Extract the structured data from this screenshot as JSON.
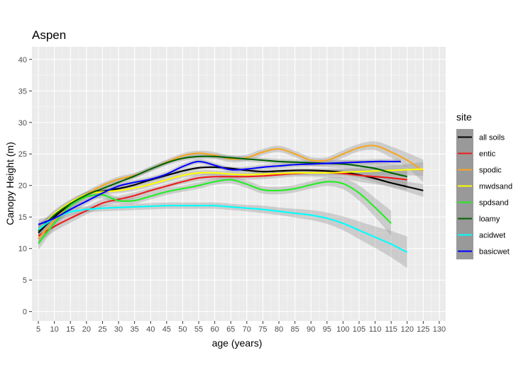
{
  "chart_data": {
    "type": "line",
    "title": "Aspen",
    "xlabel": "age (years)",
    "ylabel": "Canopy Height (m)",
    "xlim": [
      3,
      132
    ],
    "ylim": [
      -1.5,
      42
    ],
    "xticks": [
      5,
      10,
      15,
      20,
      25,
      30,
      35,
      40,
      45,
      50,
      55,
      60,
      65,
      70,
      75,
      80,
      85,
      90,
      95,
      100,
      105,
      110,
      115,
      120,
      125,
      130
    ],
    "yticks": [
      0,
      5,
      10,
      15,
      20,
      25,
      30,
      35,
      40
    ],
    "grid": true,
    "legend": {
      "title": "site",
      "position": "right"
    },
    "confidence_band": true,
    "series": [
      {
        "name": "all soils",
        "color": "#000000",
        "x": [
          5,
          10,
          15,
          20,
          25,
          30,
          35,
          40,
          45,
          50,
          55,
          60,
          65,
          70,
          75,
          80,
          85,
          90,
          95,
          100,
          105,
          110,
          115,
          120,
          125
        ],
        "y": [
          12.5,
          15.0,
          17.0,
          18.6,
          19.1,
          19.5,
          20.1,
          20.9,
          21.6,
          22.3,
          22.8,
          22.9,
          22.7,
          22.4,
          22.2,
          22.3,
          22.4,
          22.4,
          22.3,
          22.1,
          21.7,
          21.1,
          20.4,
          19.8,
          19.2
        ],
        "lo": [
          12.0,
          14.6,
          16.6,
          18.2,
          18.8,
          19.2,
          19.8,
          20.6,
          21.3,
          22.0,
          22.5,
          22.6,
          22.4,
          22.1,
          21.9,
          22.0,
          22.1,
          22.1,
          22.0,
          21.7,
          21.2,
          20.5,
          19.7,
          19.0,
          18.2
        ],
        "hi": [
          13.0,
          15.4,
          17.4,
          19.0,
          19.4,
          19.8,
          20.4,
          21.2,
          21.9,
          22.6,
          23.1,
          23.2,
          23.0,
          22.7,
          22.5,
          22.6,
          22.7,
          22.7,
          22.6,
          22.5,
          22.2,
          21.7,
          21.1,
          20.6,
          20.2
        ]
      },
      {
        "name": "entic",
        "color": "#ee1c1c",
        "x": [
          5,
          10,
          15,
          20,
          25,
          30,
          35,
          40,
          45,
          50,
          55,
          60,
          65,
          70,
          75,
          80,
          85,
          90,
          95,
          100,
          105,
          110,
          115,
          120
        ],
        "y": [
          12.0,
          13.5,
          14.8,
          16.0,
          17.2,
          17.8,
          18.4,
          19.2,
          19.9,
          20.6,
          21.2,
          21.4,
          21.4,
          21.4,
          21.5,
          21.7,
          21.9,
          22.0,
          22.0,
          21.9,
          21.6,
          21.4,
          21.2,
          20.9
        ],
        "lo": [
          11.0,
          12.7,
          14.1,
          15.4,
          16.6,
          17.3,
          17.9,
          18.8,
          19.5,
          20.2,
          20.7,
          20.9,
          20.9,
          20.9,
          21.0,
          21.2,
          21.4,
          21.4,
          21.3,
          21.1,
          20.6,
          20.2,
          19.8,
          19.2
        ],
        "hi": [
          13.0,
          14.3,
          15.5,
          16.6,
          17.8,
          18.3,
          18.9,
          19.6,
          20.3,
          21.0,
          21.7,
          21.9,
          21.9,
          21.9,
          22.0,
          22.2,
          22.4,
          22.6,
          22.7,
          22.7,
          22.6,
          22.6,
          22.6,
          22.6
        ]
      },
      {
        "name": "spodic",
        "color": "#f5a623",
        "x": [
          5,
          10,
          15,
          20,
          25,
          30,
          35,
          40,
          45,
          50,
          55,
          60,
          65,
          70,
          75,
          80,
          85,
          90,
          95,
          100,
          105,
          110,
          115,
          120,
          125
        ],
        "y": [
          11.5,
          14.5,
          16.8,
          18.6,
          20.0,
          21.0,
          21.6,
          22.6,
          23.7,
          24.7,
          25.1,
          24.8,
          24.2,
          24.4,
          25.3,
          25.8,
          25.0,
          24.0,
          24.0,
          25.0,
          26.0,
          26.3,
          25.3,
          24.0,
          22.3
        ],
        "lo": [
          10.5,
          13.7,
          16.2,
          18.1,
          19.6,
          20.6,
          21.2,
          22.2,
          23.3,
          24.3,
          24.7,
          24.3,
          23.7,
          23.9,
          24.8,
          25.3,
          24.5,
          23.5,
          23.5,
          24.4,
          25.4,
          25.6,
          24.4,
          22.8,
          20.5
        ],
        "hi": [
          12.5,
          15.3,
          17.4,
          19.1,
          20.4,
          21.4,
          22.0,
          23.0,
          24.1,
          25.1,
          25.5,
          25.3,
          24.7,
          24.9,
          25.8,
          26.3,
          25.5,
          24.5,
          24.5,
          25.6,
          26.6,
          27.0,
          26.2,
          25.2,
          24.1
        ]
      },
      {
        "name": "mwdsand",
        "color": "#ffff00",
        "x": [
          5,
          10,
          15,
          20,
          25,
          30,
          35,
          40,
          45,
          50,
          55,
          60,
          65,
          70,
          75,
          80,
          85,
          90,
          95,
          100,
          105,
          110,
          115,
          120,
          125
        ],
        "y": [
          12.8,
          15.5,
          17.3,
          18.6,
          19.0,
          19.2,
          19.6,
          20.2,
          20.9,
          21.6,
          22.0,
          22.0,
          21.8,
          21.7,
          21.8,
          21.9,
          22.0,
          22.0,
          22.0,
          22.1,
          22.2,
          22.3,
          22.4,
          22.5,
          22.6
        ],
        "lo": [
          12.0,
          14.9,
          16.8,
          18.2,
          18.6,
          18.8,
          19.2,
          19.8,
          20.5,
          21.2,
          21.6,
          21.6,
          21.4,
          21.3,
          21.4,
          21.5,
          21.6,
          21.6,
          21.6,
          21.6,
          21.6,
          21.6,
          21.6,
          21.6,
          21.5
        ],
        "hi": [
          13.6,
          16.1,
          17.8,
          19.0,
          19.4,
          19.6,
          20.0,
          20.6,
          21.3,
          22.0,
          22.4,
          22.4,
          22.2,
          22.1,
          22.2,
          22.3,
          22.4,
          22.4,
          22.4,
          22.6,
          22.8,
          23.0,
          23.2,
          23.4,
          23.7
        ]
      },
      {
        "name": "spdsand",
        "color": "#22ee22",
        "x": [
          5,
          10,
          15,
          20,
          25,
          30,
          35,
          40,
          45,
          50,
          55,
          60,
          65,
          70,
          75,
          80,
          85,
          90,
          95,
          100,
          105,
          110,
          115
        ],
        "y": [
          10.8,
          14.0,
          16.8,
          18.2,
          18.5,
          17.6,
          17.6,
          18.3,
          19.0,
          19.5,
          20.0,
          20.6,
          20.9,
          20.2,
          19.3,
          19.2,
          19.5,
          20.1,
          20.6,
          20.3,
          18.8,
          16.5,
          14.0
        ],
        "lo": [
          9.8,
          13.2,
          16.0,
          17.6,
          17.9,
          17.1,
          17.1,
          17.8,
          18.5,
          19.0,
          19.5,
          20.1,
          20.3,
          19.6,
          18.7,
          18.6,
          18.9,
          19.5,
          19.9,
          19.4,
          17.6,
          15.0,
          12.0
        ],
        "hi": [
          11.8,
          14.8,
          17.6,
          18.8,
          19.1,
          18.1,
          18.1,
          18.8,
          19.5,
          20.0,
          20.5,
          21.1,
          21.5,
          20.8,
          19.9,
          19.8,
          20.1,
          20.7,
          21.3,
          21.2,
          20.0,
          18.0,
          16.0
        ]
      },
      {
        "name": "loamy",
        "color": "#006400",
        "x": [
          5,
          10,
          15,
          20,
          25,
          30,
          35,
          40,
          45,
          50,
          55,
          60,
          65,
          70,
          75,
          80,
          85,
          90,
          95,
          100,
          105,
          110,
          115,
          120
        ],
        "y": [
          12.8,
          15.3,
          17.1,
          18.5,
          19.5,
          20.5,
          21.5,
          22.6,
          23.6,
          24.3,
          24.6,
          24.6,
          24.4,
          24.2,
          24.0,
          23.8,
          23.7,
          23.6,
          23.5,
          23.4,
          23.1,
          22.7,
          22.0,
          21.4
        ],
        "lo": [
          12.0,
          14.7,
          16.6,
          18.1,
          19.1,
          20.1,
          21.1,
          22.2,
          23.2,
          23.9,
          24.2,
          24.2,
          24.0,
          23.8,
          23.6,
          23.4,
          23.3,
          23.1,
          22.9,
          22.7,
          22.2,
          21.6,
          20.6,
          19.6
        ],
        "hi": [
          13.6,
          15.9,
          17.6,
          18.9,
          19.9,
          20.9,
          21.9,
          23.0,
          24.0,
          24.7,
          25.0,
          25.0,
          24.8,
          24.6,
          24.4,
          24.2,
          24.1,
          24.1,
          24.1,
          24.1,
          24.0,
          23.8,
          23.4,
          23.2
        ]
      },
      {
        "name": "acidwet",
        "color": "#00ffff",
        "x": [
          5,
          10,
          15,
          20,
          25,
          30,
          35,
          40,
          45,
          50,
          55,
          60,
          65,
          70,
          75,
          80,
          85,
          90,
          95,
          100,
          105,
          110,
          115,
          120
        ],
        "y": [
          13.0,
          14.8,
          15.8,
          16.2,
          16.4,
          16.5,
          16.6,
          16.7,
          16.8,
          16.8,
          16.8,
          16.8,
          16.6,
          16.4,
          16.2,
          15.9,
          15.6,
          15.3,
          14.8,
          14.0,
          12.9,
          11.8,
          10.7,
          9.4
        ],
        "lo": [
          12.0,
          14.1,
          15.2,
          15.7,
          15.9,
          16.0,
          16.1,
          16.2,
          16.3,
          16.3,
          16.3,
          16.3,
          16.1,
          15.9,
          15.6,
          15.3,
          14.9,
          14.5,
          13.9,
          12.9,
          11.5,
          10.1,
          8.6,
          6.9
        ],
        "hi": [
          14.0,
          15.5,
          16.4,
          16.7,
          16.9,
          17.0,
          17.1,
          17.2,
          17.3,
          17.3,
          17.3,
          17.3,
          17.1,
          16.9,
          16.8,
          16.5,
          16.3,
          16.1,
          15.7,
          15.1,
          14.3,
          13.5,
          12.8,
          11.9
        ]
      },
      {
        "name": "basicwet",
        "color": "#0000ff",
        "x": [
          5,
          10,
          15,
          20,
          25,
          30,
          35,
          40,
          45,
          50,
          55,
          60,
          65,
          70,
          75,
          80,
          85,
          90,
          95,
          100,
          105,
          110,
          115,
          118
        ],
        "y": [
          13.8,
          14.8,
          16.2,
          17.5,
          18.8,
          19.9,
          20.5,
          21.0,
          21.8,
          23.0,
          23.8,
          23.2,
          22.5,
          22.6,
          22.9,
          23.1,
          23.3,
          23.4,
          23.5,
          23.6,
          23.7,
          23.8,
          23.8,
          23.8
        ],
        "lo": [
          13.0,
          14.2,
          15.6,
          17.0,
          18.4,
          19.5,
          20.1,
          20.6,
          21.4,
          22.6,
          23.4,
          22.8,
          22.1,
          22.2,
          22.5,
          22.7,
          22.9,
          23.0,
          23.1,
          23.2,
          23.3,
          23.4,
          23.4,
          23.4
        ],
        "hi": [
          14.6,
          15.4,
          16.8,
          18.0,
          19.2,
          20.3,
          20.9,
          21.4,
          22.2,
          23.4,
          24.2,
          23.6,
          22.9,
          23.0,
          23.3,
          23.5,
          23.7,
          23.8,
          23.9,
          24.0,
          24.1,
          24.2,
          24.2,
          24.2
        ]
      }
    ]
  }
}
